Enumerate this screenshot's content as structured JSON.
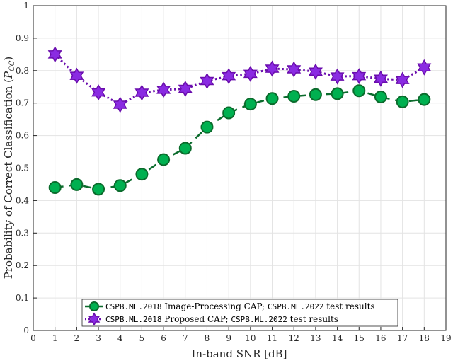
{
  "chart_data": {
    "type": "line",
    "title": "",
    "xlabel": "In-band SNR [dB]",
    "ylabel": "Probability of Correct Classification (",
    "ylabel_math": "P",
    "ylabel_sub": "CC",
    "ylabel_end": ")",
    "xlim": [
      0,
      19
    ],
    "ylim": [
      0,
      1
    ],
    "xticks": [
      "0",
      "1",
      "2",
      "3",
      "4",
      "5",
      "6",
      "7",
      "8",
      "9",
      "10",
      "11",
      "12",
      "13",
      "14",
      "15",
      "16",
      "17",
      "18",
      "19"
    ],
    "yticks": [
      "0",
      "0.1",
      "0.2",
      "0.3",
      "0.4",
      "0.5",
      "0.6",
      "0.7",
      "0.8",
      "0.9",
      "1"
    ],
    "grid": true,
    "legend_placement": "bottom-center",
    "x": [
      1,
      2,
      3,
      4,
      5,
      6,
      7,
      8,
      9,
      10,
      11,
      12,
      13,
      14,
      15,
      16,
      17,
      18
    ],
    "series": [
      {
        "name": "CSPB.ML.2018 Image-Processing CAP; CSPB.ML.2022 test results",
        "legend_parts": [
          "CSPB.ML.2018",
          " Image-Processing CAP; ",
          "CSPB.ML.2022",
          " test results"
        ],
        "color": "#0b6b2c",
        "fill": "#00b050",
        "marker": "circle",
        "linestyle": "dashed",
        "values": [
          0.44,
          0.449,
          0.435,
          0.446,
          0.481,
          0.526,
          0.561,
          0.626,
          0.67,
          0.697,
          0.714,
          0.721,
          0.726,
          0.729,
          0.738,
          0.719,
          0.704,
          0.711
        ]
      },
      {
        "name": "CSPB.ML.2018 Proposed CAP; CSPB.ML.2022 test results",
        "legend_parts": [
          "CSPB.ML.2018",
          " Proposed CAP; ",
          "CSPB.ML.2022",
          " test results"
        ],
        "color": "#6a0dad",
        "fill": "#8a2be2",
        "marker": "hexagram",
        "linestyle": "dotted",
        "values": [
          0.85,
          0.784,
          0.733,
          0.695,
          0.732,
          0.741,
          0.744,
          0.768,
          0.783,
          0.79,
          0.806,
          0.804,
          0.797,
          0.782,
          0.783,
          0.775,
          0.771,
          0.81
        ]
      }
    ]
  }
}
